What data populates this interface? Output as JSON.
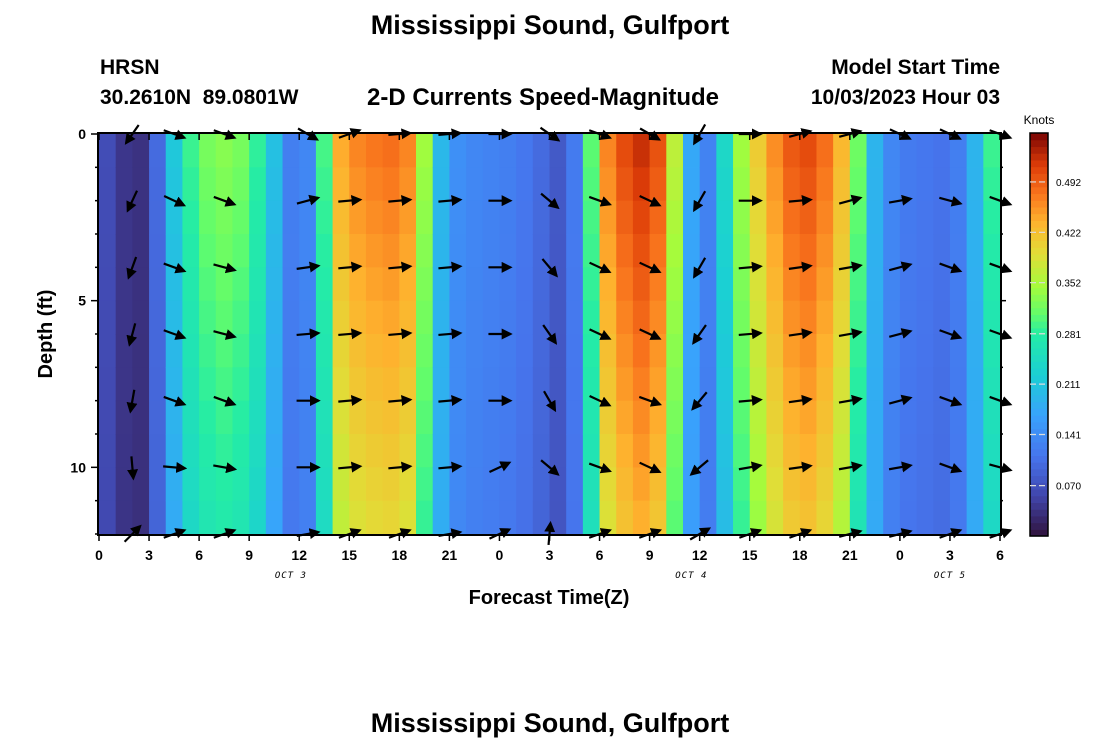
{
  "header": {
    "title": "Mississippi Sound, Gulfport",
    "station_id": "HRSN",
    "coordinates": "30.2610N  89.0801W",
    "subtitle": "2-D Currents Speed-Magnitude",
    "model_start_label": "Model Start Time",
    "model_start_value": "10/03/2023 Hour 03"
  },
  "footer": {
    "title": "Mississippi Sound, Gulfport"
  },
  "chart_data": {
    "type": "heatmap",
    "title": "2-D Currents Speed-Magnitude",
    "xlabel": "Forecast Time(Z)",
    "ylabel": "Depth (ft)",
    "x_ticks": [
      "0",
      "3",
      "6",
      "9",
      "12",
      "15",
      "18",
      "21",
      "0",
      "3",
      "6",
      "9",
      "12",
      "15",
      "18",
      "21",
      "0",
      "3",
      "6"
    ],
    "x_tick_hours": [
      0,
      3,
      6,
      9,
      12,
      15,
      18,
      21,
      24,
      27,
      30,
      33,
      36,
      39,
      42,
      45,
      48,
      51,
      54
    ],
    "x_range_hours": [
      0,
      54
    ],
    "date_labels": [
      {
        "text": "OCT 3",
        "hour": 11.5
      },
      {
        "text": "OCT 4",
        "hour": 35.5
      },
      {
        "text": "OCT 5",
        "hour": 51
      }
    ],
    "y_ticks": [
      "0",
      "5",
      "10"
    ],
    "y_tick_values": [
      0,
      5,
      10
    ],
    "y_range": [
      0,
      12
    ],
    "y_inverted": true,
    "colorbar": {
      "unit": "Knots",
      "range": [
        0.0,
        0.56
      ],
      "tick_labels": [
        "0.492",
        "0.422",
        "0.352",
        "0.281",
        "0.211",
        "0.141",
        "0.070"
      ],
      "tick_values": [
        0.492,
        0.422,
        0.352,
        0.281,
        0.211,
        0.141,
        0.07
      ]
    },
    "speed_by_hour": {
      "hours": [
        0,
        1,
        2,
        3,
        4,
        5,
        6,
        7,
        8,
        9,
        10,
        11,
        12,
        13,
        14,
        15,
        16,
        17,
        18,
        19,
        20,
        21,
        22,
        23,
        24,
        25,
        26,
        27,
        28,
        29,
        30,
        31,
        32,
        33,
        34,
        35,
        36,
        37,
        38,
        39,
        40,
        41,
        42,
        43,
        44,
        45,
        46,
        47,
        48,
        49,
        50,
        51,
        52,
        53,
        54
      ],
      "values": [
        0.08,
        0.05,
        0.03,
        0.04,
        0.16,
        0.27,
        0.31,
        0.33,
        0.33,
        0.31,
        0.26,
        0.15,
        0.1,
        0.17,
        0.42,
        0.46,
        0.47,
        0.48,
        0.48,
        0.45,
        0.24,
        0.15,
        0.14,
        0.13,
        0.13,
        0.12,
        0.11,
        0.09,
        0.07,
        0.17,
        0.44,
        0.49,
        0.52,
        0.53,
        0.47,
        0.26,
        0.09,
        0.17,
        0.31,
        0.38,
        0.44,
        0.48,
        0.51,
        0.5,
        0.46,
        0.4,
        0.23,
        0.15,
        0.12,
        0.12,
        0.11,
        0.11,
        0.14,
        0.24,
        0.34
      ]
    },
    "vector_depths_ft": [
      0,
      2,
      4,
      6,
      8,
      10,
      12
    ],
    "vector_hours": [
      2,
      4.5,
      7.5,
      12.5,
      15,
      18,
      21,
      24,
      27,
      30,
      33,
      36,
      39,
      42,
      45,
      48,
      51,
      54
    ],
    "vector_directions_deg": [
      [
        -125,
        -20,
        -20,
        -30,
        20,
        5,
        5,
        0,
        -35,
        -20,
        -30,
        -120,
        0,
        15,
        15,
        -25,
        -25,
        -20
      ],
      [
        -115,
        -25,
        -20,
        15,
        5,
        5,
        5,
        0,
        -40,
        -20,
        -25,
        -120,
        0,
        5,
        15,
        10,
        -15,
        -20
      ],
      [
        -110,
        -20,
        -15,
        8,
        5,
        5,
        5,
        0,
        -50,
        -25,
        -25,
        -120,
        5,
        8,
        10,
        15,
        -20,
        -20
      ],
      [
        -105,
        -20,
        -15,
        5,
        5,
        5,
        5,
        0,
        -55,
        -25,
        -25,
        -125,
        5,
        8,
        10,
        15,
        -20,
        -20
      ],
      [
        -100,
        -20,
        -20,
        0,
        5,
        5,
        5,
        0,
        -60,
        -25,
        -20,
        -130,
        5,
        8,
        10,
        15,
        -20,
        -20
      ],
      [
        -85,
        -5,
        -10,
        0,
        5,
        5,
        5,
        25,
        -40,
        -20,
        -25,
        -140,
        10,
        8,
        10,
        10,
        -20,
        -15
      ],
      [
        45,
        20,
        20,
        10,
        20,
        20,
        10,
        25,
        85,
        20,
        20,
        30,
        20,
        20,
        15,
        15,
        20,
        20
      ]
    ]
  }
}
